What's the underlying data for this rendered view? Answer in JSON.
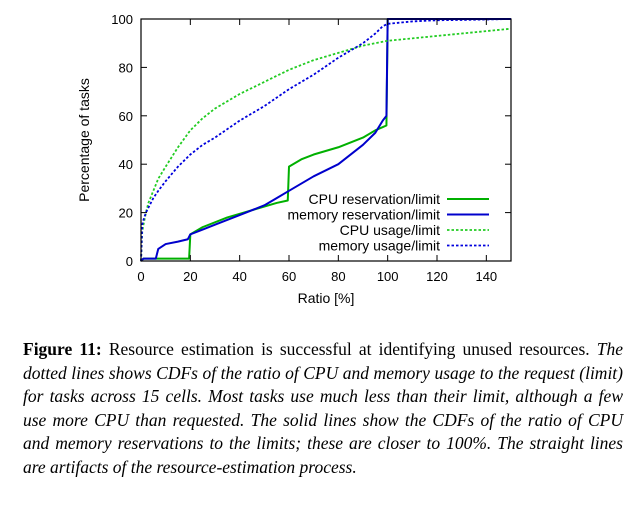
{
  "chart_data": {
    "type": "line",
    "title": "",
    "xlabel": "Ratio [%]",
    "ylabel": "Percentage of tasks",
    "xlim": [
      0,
      150
    ],
    "ylim": [
      0,
      100
    ],
    "xticks": [
      0,
      20,
      40,
      60,
      80,
      100,
      120,
      140
    ],
    "yticks": [
      0,
      20,
      40,
      60,
      80,
      100
    ],
    "grid": false,
    "legend_position": "lower-right",
    "series": [
      {
        "name": "CPU reservation/limit",
        "color": "#00b000",
        "style": "solid",
        "x": [
          0,
          1,
          19.5,
          20,
          25,
          35,
          45,
          55,
          59.5,
          60,
          65,
          70,
          80,
          90,
          95,
          99.5,
          100,
          150
        ],
        "y": [
          0,
          1,
          1,
          11,
          14,
          18,
          21,
          24,
          25,
          39,
          42,
          44,
          47,
          51,
          54,
          56,
          100,
          100
        ]
      },
      {
        "name": "memory reservation/limit",
        "color": "#0000cc",
        "style": "solid",
        "x": [
          0,
          1,
          6,
          7,
          10,
          15,
          19,
          20,
          25,
          30,
          40,
          50,
          55,
          60,
          65,
          70,
          80,
          90,
          95,
          98,
          99.5,
          100,
          150
        ],
        "y": [
          0,
          1,
          1,
          5,
          7,
          8,
          9,
          11,
          13,
          15,
          19,
          23,
          26,
          29,
          32,
          35,
          40,
          48,
          53,
          58,
          60,
          100,
          100
        ]
      },
      {
        "name": "CPU usage/limit",
        "color": "#22cc22",
        "style": "dotted",
        "x": [
          0,
          0.5,
          1,
          2,
          3,
          5,
          7,
          10,
          15,
          20,
          25,
          30,
          40,
          50,
          60,
          70,
          80,
          90,
          100,
          110,
          120,
          130,
          140,
          150
        ],
        "y": [
          0,
          12,
          15,
          20,
          24,
          29,
          34,
          39,
          47,
          54,
          59,
          63,
          69,
          74,
          79,
          83,
          86,
          89,
          91,
          92,
          93,
          94,
          95,
          96
        ]
      },
      {
        "name": "memory usage/limit",
        "color": "#0000dd",
        "style": "dotted",
        "x": [
          0,
          0.5,
          1,
          2,
          3,
          5,
          7,
          10,
          15,
          20,
          25,
          30,
          40,
          50,
          60,
          70,
          80,
          90,
          95,
          98,
          100,
          105,
          110,
          120,
          130,
          140,
          150
        ],
        "y": [
          0,
          15,
          17,
          20,
          22,
          26,
          29,
          33,
          39,
          44,
          48,
          51,
          58,
          64,
          71,
          77,
          84,
          90,
          94,
          97,
          98,
          98.5,
          99,
          99.5,
          99.6,
          99.8,
          100
        ]
      }
    ]
  },
  "caption": {
    "label": "Figure 11:",
    "text_plain": " Resource estimation is successful at identifying unused resources. ",
    "text_italic": "The dotted lines shows CDFs of the ratio of CPU and memory usage to the request (limit) for tasks across 15 cells. Most tasks use much less than their limit, although a few use more CPU than requested. The solid lines show the CDFs of the ratio of CPU and memory reservations to the limits; these are closer to 100%. The straight lines are artifacts of the resource-estimation process."
  }
}
